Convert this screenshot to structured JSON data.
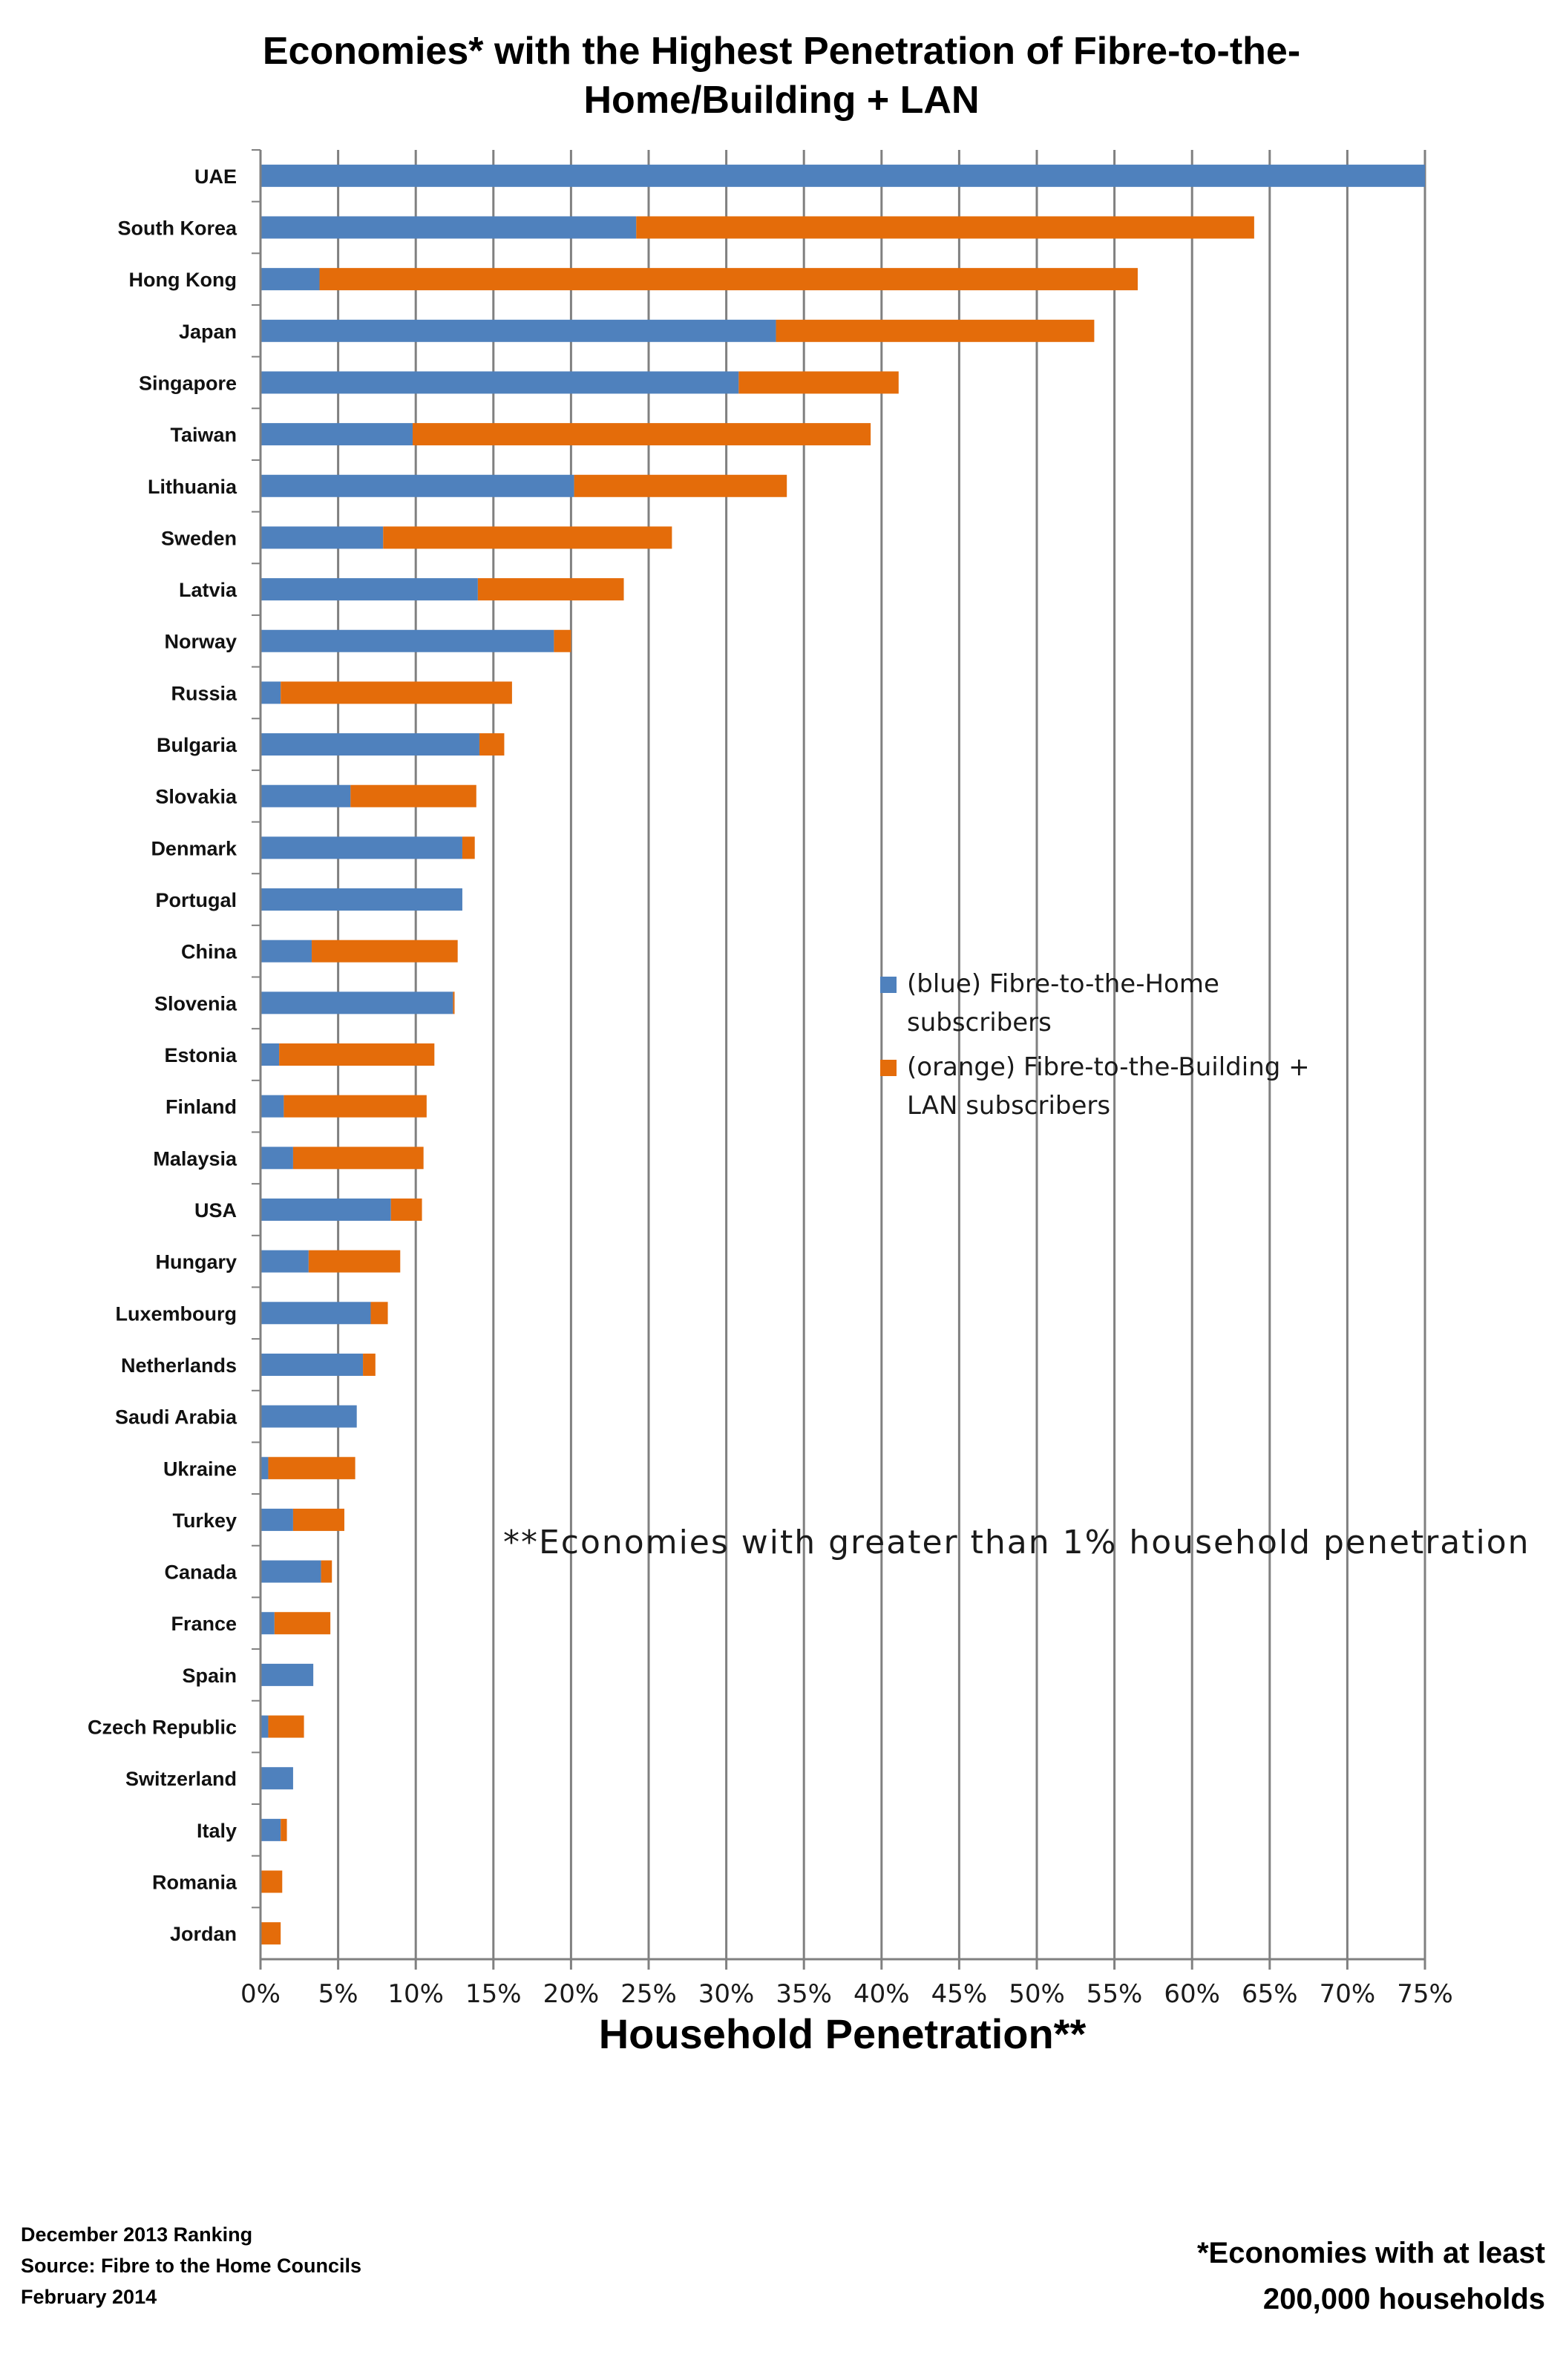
{
  "chart_data": {
    "type": "bar",
    "orientation": "horizontal",
    "stacked": true,
    "title": "Economies* with the Highest Penetration of Fibre-to-the-Home/Building + LAN",
    "title_lines": [
      "Economies* with the Highest Penetration of Fibre-to-the-",
      "Home/Building + LAN"
    ],
    "xlabel": "Household Penetration**",
    "ylabel": "",
    "xlim": [
      0,
      75
    ],
    "x_ticks": [
      "0%",
      "5%",
      "10%",
      "15%",
      "20%",
      "25%",
      "30%",
      "35%",
      "40%",
      "45%",
      "50%",
      "55%",
      "60%",
      "65%",
      "70%",
      "75%"
    ],
    "grid": true,
    "categories": [
      "UAE",
      "South Korea",
      "Hong Kong",
      "Japan",
      "Singapore",
      "Taiwan",
      "Lithuania",
      "Sweden",
      "Latvia",
      "Norway",
      "Russia",
      "Bulgaria",
      "Slovakia",
      "Denmark",
      "Portugal",
      "China",
      "Slovenia",
      "Estonia",
      "Finland",
      "Malaysia",
      "USA",
      "Hungary",
      "Luxembourg",
      "Netherlands",
      "Saudi Arabia",
      "Ukraine",
      "Turkey",
      "Canada",
      "France",
      "Spain",
      "Czech Republic",
      "Switzerland",
      "Italy",
      "Romania",
      "Jordan"
    ],
    "series": [
      {
        "name": "(blue) Fibre-to-the-Home subscribers",
        "color": "#4F81BD",
        "values": [
          75.0,
          24.2,
          3.8,
          33.2,
          30.8,
          9.8,
          20.2,
          7.9,
          14.0,
          18.9,
          1.3,
          14.1,
          5.8,
          13.0,
          13.0,
          3.3,
          12.4,
          1.2,
          1.5,
          2.1,
          8.4,
          3.1,
          7.1,
          6.6,
          6.2,
          0.5,
          2.1,
          3.9,
          0.9,
          3.4,
          0.5,
          2.1,
          1.3,
          0.0,
          0.0
        ]
      },
      {
        "name": "(orange) Fibre-to-the-Building + LAN subscribers",
        "color": "#E46C0A",
        "values": [
          0.0,
          39.8,
          52.7,
          20.5,
          10.3,
          29.5,
          13.7,
          18.6,
          9.4,
          1.1,
          14.9,
          1.6,
          8.1,
          0.8,
          0.0,
          9.4,
          0.1,
          10.0,
          9.2,
          8.4,
          2.0,
          5.9,
          1.1,
          0.8,
          0.0,
          5.6,
          3.3,
          0.7,
          3.6,
          0.0,
          2.3,
          0.0,
          0.4,
          1.4,
          1.3
        ]
      }
    ],
    "legend_position": "right-middle"
  },
  "legend": {
    "blue_label": "(blue) Fibre-to-the-Home subscribers",
    "orange_label": "(orange) Fibre-to-the-Building + LAN subscribers"
  },
  "annotation": "**Economies with greater than 1% household penetration",
  "footer": {
    "ranking": "December 2013 Ranking",
    "source": "Source: Fibre to the Home Councils",
    "date": "February 2014",
    "note_line1": "*Economies with at least",
    "note_line2": "200,000 households"
  },
  "colors": {
    "blue": "#4F81BD",
    "orange": "#E46C0A",
    "grid": "#808080"
  }
}
